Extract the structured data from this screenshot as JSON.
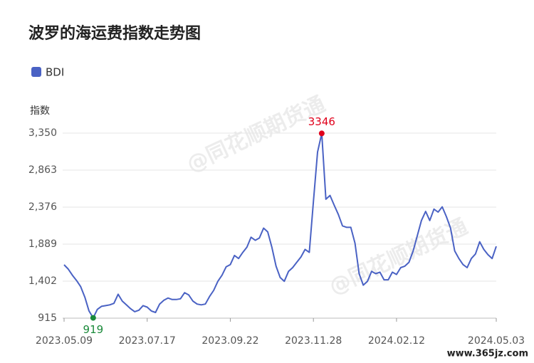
{
  "chart_data": {
    "type": "line",
    "title": "波罗的海运费指数走势图",
    "y_label": "指数",
    "categories": [
      "2023.05.09",
      null,
      null,
      null,
      null,
      null,
      null,
      null,
      null,
      null,
      null,
      null,
      null,
      null,
      null,
      null,
      null,
      null,
      null,
      null,
      "2023.07.17",
      null,
      null,
      null,
      null,
      null,
      null,
      null,
      null,
      null,
      null,
      null,
      null,
      null,
      null,
      null,
      null,
      null,
      null,
      null,
      "2023.09.22",
      null,
      null,
      null,
      null,
      null,
      null,
      null,
      null,
      null,
      null,
      null,
      null,
      null,
      null,
      null,
      null,
      null,
      null,
      null,
      "2023.11.28",
      null,
      null,
      null,
      null,
      null,
      null,
      null,
      null,
      null,
      null,
      null,
      null,
      null,
      null,
      null,
      null,
      null,
      null,
      null,
      "2024.02.12",
      null,
      null,
      null,
      null,
      null,
      null,
      null,
      null,
      null,
      null,
      null,
      null,
      null,
      null,
      null,
      null,
      null,
      null,
      null,
      null,
      null,
      null,
      null,
      "2024.05.03"
    ],
    "series": [
      {
        "name": "BDI",
        "color": "#4a62c4",
        "values": [
          1617,
          1561,
          1480,
          1410,
          1330,
          1190,
          1010,
          919,
          1030,
          1070,
          1080,
          1090,
          1110,
          1230,
          1140,
          1090,
          1040,
          1000,
          1020,
          1080,
          1060,
          1010,
          990,
          1100,
          1150,
          1180,
          1160,
          1160,
          1170,
          1250,
          1220,
          1140,
          1100,
          1090,
          1100,
          1200,
          1280,
          1400,
          1480,
          1590,
          1620,
          1740,
          1700,
          1780,
          1850,
          1980,
          1940,
          1970,
          2100,
          2050,
          1850,
          1600,
          1450,
          1400,
          1530,
          1580,
          1650,
          1720,
          1820,
          1780,
          2450,
          3100,
          3346,
          2480,
          2530,
          2400,
          2280,
          2130,
          2110,
          2110,
          1900,
          1500,
          1350,
          1400,
          1530,
          1500,
          1520,
          1420,
          1420,
          1520,
          1490,
          1580,
          1600,
          1650,
          1800,
          2000,
          2200,
          2320,
          2200,
          2350,
          2310,
          2380,
          2250,
          2100,
          1800,
          1700,
          1620,
          1580,
          1700,
          1760,
          1920,
          1820,
          1750,
          1700,
          1860
        ]
      }
    ],
    "ylim": [
      915,
      3350
    ],
    "yticks": [
      915,
      {
        "value": 1402,
        "label": "1,402"
      },
      {
        "value": 1889,
        "label": "1,889"
      },
      {
        "value": 2376,
        "label": "2,376"
      },
      {
        "value": 2863,
        "label": "2,863"
      },
      {
        "value": 3350,
        "label": "3,350"
      }
    ],
    "grid": true,
    "max_color": "#e0001b",
    "min_color": "#1a8a3a",
    "watermarks": [
      "@同花顺期货通",
      "@同花顺期货通",
      "www.365jz.com"
    ]
  }
}
